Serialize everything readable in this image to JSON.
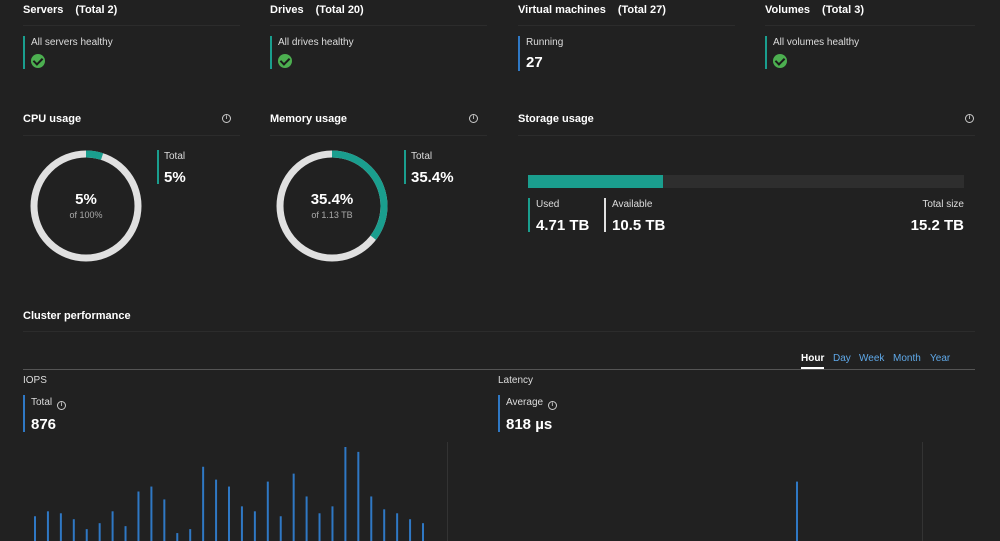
{
  "tiles": [
    {
      "title": "Servers",
      "total": "(Total 2)",
      "label": "All servers healthy",
      "kind": "check"
    },
    {
      "title": "Drives",
      "total": "(Total 20)",
      "label": "All drives healthy",
      "kind": "check"
    },
    {
      "title": "Virtual machines",
      "total": "(Total 27)",
      "label": "Running",
      "value": "27",
      "kind": "value"
    },
    {
      "title": "Volumes",
      "total": "(Total 3)",
      "label": "All volumes healthy",
      "kind": "check"
    }
  ],
  "cpu": {
    "title": "CPU usage",
    "center": "5%",
    "sub": "of 100%",
    "total_label": "Total",
    "total_value": "5%",
    "percent": 5
  },
  "memory": {
    "title": "Memory usage",
    "center": "35.4%",
    "sub": "of 1.13 TB",
    "total_label": "Total",
    "total_value": "35.4%",
    "percent": 35.4
  },
  "storage": {
    "title": "Storage usage",
    "used_label": "Used",
    "used_value": "4.71 TB",
    "avail_label": "Available",
    "avail_value": "10.5 TB",
    "size_label": "Total size",
    "size_value": "15.2 TB",
    "used_fraction": 0.31
  },
  "cluster": {
    "title": "Cluster performance",
    "ranges": [
      "Hour",
      "Day",
      "Week",
      "Month",
      "Year"
    ],
    "active_range": "Hour",
    "iops": {
      "title": "IOPS",
      "label": "Total",
      "value": "876"
    },
    "latency": {
      "title": "Latency",
      "label": "Average",
      "value": "818 µs"
    }
  },
  "colors": {
    "teal": "#1a9e8e",
    "blue": "#2f78c4",
    "track": "#e0e0e0",
    "background": "#212121"
  },
  "iops_spikes": [
    0.25,
    0.3,
    0.28,
    0.22,
    0.12,
    0.18,
    0.3,
    0.15,
    0.5,
    0.55,
    0.42,
    0.08,
    0.12,
    0.75,
    0.62,
    0.55,
    0.35,
    0.3,
    0.6,
    0.25,
    0.68,
    0.45,
    0.28,
    0.35,
    0.95,
    0.9,
    0.45,
    0.32,
    0.28,
    0.22,
    0.18
  ],
  "latency_spikes": [
    0.6
  ]
}
